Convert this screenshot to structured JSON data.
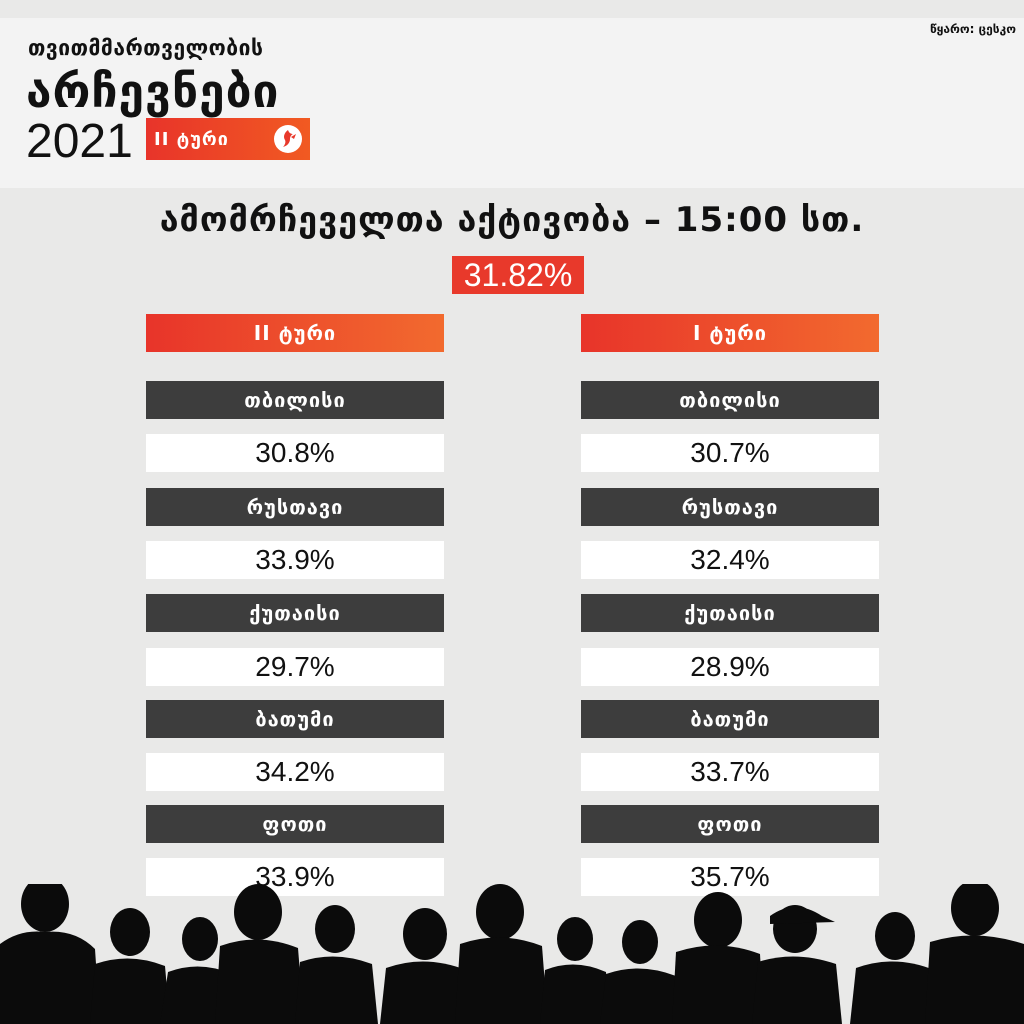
{
  "header": {
    "line1": "თვითმმართველობის",
    "line2": "არჩევნები",
    "year": "2021",
    "round_badge": "II ტური",
    "source": "წყარო: ცესკო"
  },
  "heading": "ამომრჩეველთა აქტივობა – 15:00 სთ.",
  "total_turnout": "31.82%",
  "columns": [
    {
      "title": "II ტური",
      "rows": [
        {
          "city": "თბილისი",
          "value": "30.8%"
        },
        {
          "city": "რუსთავი",
          "value": "33.9%"
        },
        {
          "city": "ქუთაისი",
          "value": "29.7%"
        },
        {
          "city": "ბათუმი",
          "value": "34.2%"
        },
        {
          "city": "ფოთი",
          "value": "33.9%"
        }
      ]
    },
    {
      "title": "I ტური",
      "rows": [
        {
          "city": "თბილისი",
          "value": "30.7%"
        },
        {
          "city": "რუსთავი",
          "value": "32.4%"
        },
        {
          "city": "ქუთაისი",
          "value": "28.9%"
        },
        {
          "city": "ბათუმი",
          "value": "33.7%"
        },
        {
          "city": "ფოთი",
          "value": "35.7%"
        }
      ]
    }
  ],
  "colors": {
    "accent": "#e8392b",
    "label_bg": "#3d3d3d",
    "background": "#e9e9e8"
  },
  "icons": {
    "logo": "rfe-logo-icon",
    "crowd": "crowd-silhouette"
  }
}
